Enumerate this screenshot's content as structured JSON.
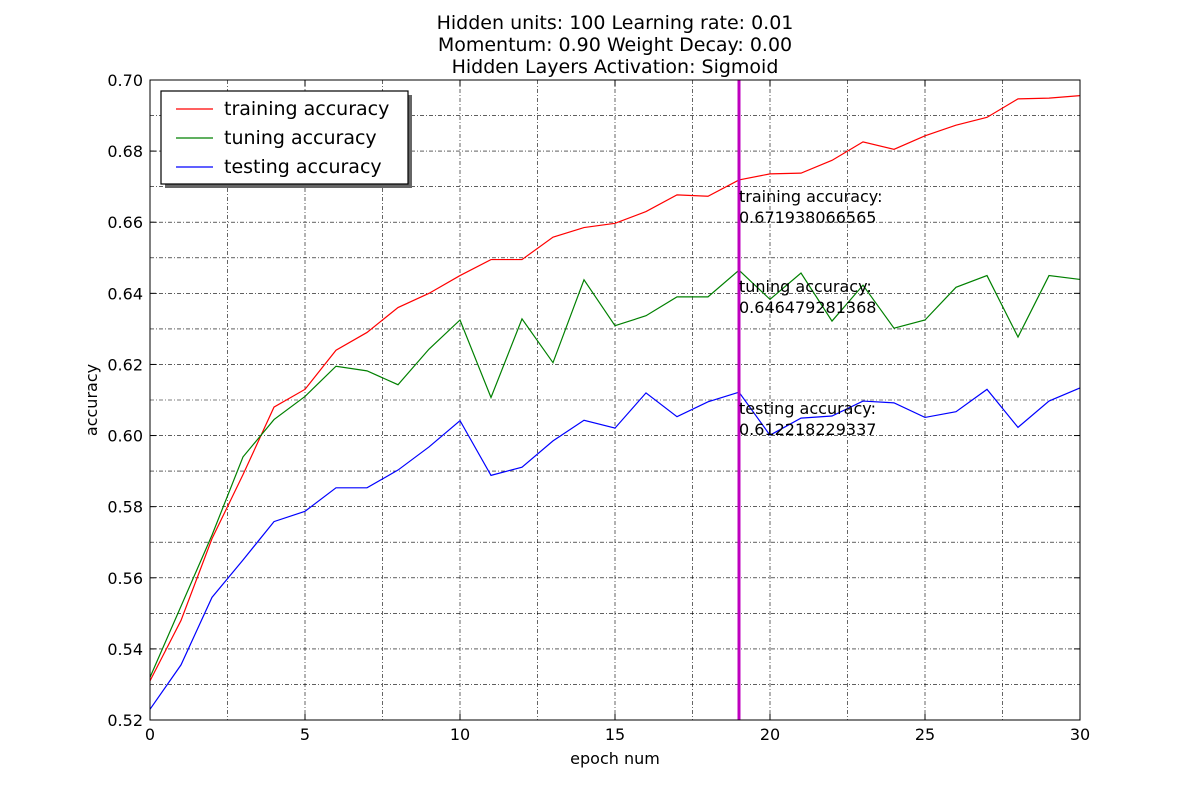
{
  "chart_data": {
    "type": "line",
    "title": [
      "Hidden units: 100 Learning rate: 0.01",
      "Momentum: 0.90 Weight Decay: 0.00",
      "Hidden Layers Activation: Sigmoid"
    ],
    "xlabel": "epoch num",
    "ylabel": "accuracy",
    "xlim": [
      0,
      30
    ],
    "ylim": [
      0.52,
      0.7
    ],
    "xticks": [
      0,
      5,
      10,
      15,
      20,
      25,
      30
    ],
    "xtick_labels": [
      "0",
      "5",
      "10",
      "15",
      "20",
      "25",
      "30"
    ],
    "yticks": [
      0.52,
      0.54,
      0.56,
      0.58,
      0.6,
      0.62,
      0.64,
      0.66,
      0.68,
      0.7
    ],
    "ytick_labels": [
      "0.52",
      "0.54",
      "0.56",
      "0.58",
      "0.60",
      "0.62",
      "0.64",
      "0.66",
      "0.68",
      "0.70"
    ],
    "grid": true,
    "legend_position": "top-left",
    "x": [
      0,
      1,
      2,
      3,
      4,
      5,
      6,
      7,
      8,
      9,
      10,
      11,
      12,
      13,
      14,
      15,
      16,
      17,
      18,
      19,
      20,
      21,
      22,
      23,
      24,
      25,
      26,
      27,
      28,
      29,
      30
    ],
    "series": [
      {
        "name": "training accuracy",
        "color": "#ff0000",
        "values": [
          0.531,
          0.548,
          0.571,
          0.589,
          0.608,
          0.613,
          0.624,
          0.629,
          0.636,
          0.64,
          0.645,
          0.6495,
          0.6495,
          0.6558,
          0.6585,
          0.6597,
          0.663,
          0.6677,
          0.6673,
          0.6719,
          0.6736,
          0.6738,
          0.6774,
          0.6826,
          0.6805,
          0.6843,
          0.6873,
          0.6895,
          0.6947,
          0.6949,
          0.6956
        ]
      },
      {
        "name": "tuning accuracy",
        "color": "#008000",
        "values": [
          0.532,
          0.552,
          0.572,
          0.594,
          0.6045,
          0.611,
          0.6195,
          0.6182,
          0.6143,
          0.6243,
          0.6325,
          0.6107,
          0.6328,
          0.6205,
          0.6438,
          0.6309,
          0.6337,
          0.639,
          0.639,
          0.6465,
          0.6383,
          0.6457,
          0.6322,
          0.6423,
          0.6302,
          0.6325,
          0.6417,
          0.645,
          0.6277,
          0.645,
          0.6439
        ]
      },
      {
        "name": "testing accuracy",
        "color": "#0000ff",
        "values": [
          0.523,
          0.5355,
          0.5545,
          0.565,
          0.5758,
          0.5787,
          0.5853,
          0.5853,
          0.5903,
          0.5968,
          0.6042,
          0.5888,
          0.5911,
          0.5985,
          0.6043,
          0.6021,
          0.612,
          0.6053,
          0.6095,
          0.6122,
          0.6001,
          0.6049,
          0.6055,
          0.6097,
          0.6092,
          0.6051,
          0.6067,
          0.613,
          0.6023,
          0.6097,
          0.6134
        ]
      }
    ],
    "marker": {
      "x": 19,
      "color": "#bf00bf"
    },
    "annotations": [
      {
        "x": 19,
        "y": 0.6719,
        "lines": [
          "training accuracy:",
          "0.671938066565"
        ]
      },
      {
        "x": 19,
        "y": 0.6465,
        "lines": [
          "tuning accuracy:",
          "0.646479281368"
        ]
      },
      {
        "x": 19,
        "y": 0.6122,
        "lines": [
          "testing accuracy:",
          "0.612218229337"
        ]
      }
    ]
  }
}
